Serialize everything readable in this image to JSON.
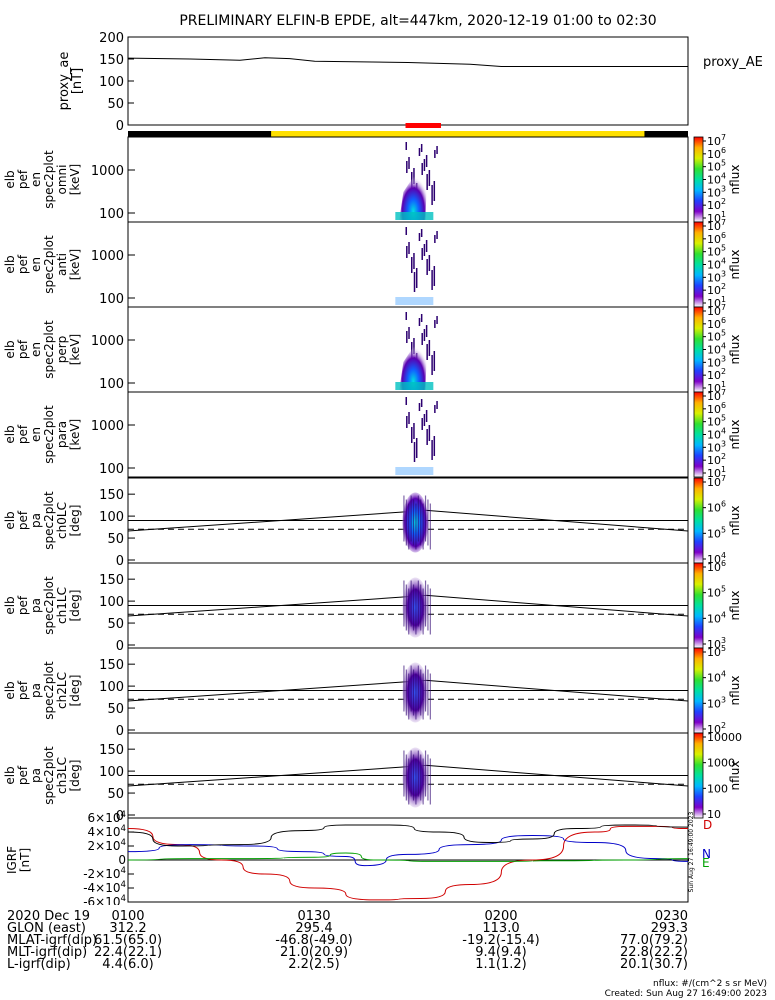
{
  "title": "PRELIMINARY ELFIN-B EPDE, alt=447km, 2020-12-19 01:00 to 02:30",
  "chart_data": [
    {
      "type": "line",
      "ylabel": [
        "proxy_ae",
        "[nT]"
      ],
      "yticks": [
        "200",
        "150",
        "100",
        "50",
        "0"
      ],
      "ylim": [
        0,
        200
      ],
      "series": [
        {
          "name": "proxy_AE",
          "x": [
            0,
            10,
            18,
            22,
            26,
            30,
            45,
            55,
            60,
            70,
            80,
            90
          ],
          "y": [
            152,
            150,
            147,
            153,
            151,
            145,
            142,
            138,
            133,
            133,
            133,
            133
          ]
        }
      ]
    },
    {
      "type": "heatmap",
      "ylabel": [
        "elb",
        "pef",
        "en",
        "spec2plot",
        "omni",
        "[keV]"
      ],
      "yticks": [
        "1000",
        "100"
      ],
      "colorbar": {
        "label": "nflux",
        "ticks": [
          "10^7",
          "10^6",
          "10^5",
          "10^4",
          "10^3",
          "10^2",
          "10^1"
        ]
      }
    },
    {
      "type": "heatmap",
      "ylabel": [
        "elb",
        "pef",
        "en",
        "spec2plot",
        "anti",
        "[keV]"
      ],
      "yticks": [
        "1000",
        "100"
      ],
      "colorbar": {
        "label": "nflux",
        "ticks": [
          "10^7",
          "10^6",
          "10^5",
          "10^4",
          "10^3",
          "10^2",
          "10^1"
        ]
      }
    },
    {
      "type": "heatmap",
      "ylabel": [
        "elb",
        "pef",
        "en",
        "spec2plot",
        "perp",
        "[keV]"
      ],
      "yticks": [
        "1000",
        "100"
      ],
      "colorbar": {
        "label": "nflux",
        "ticks": [
          "10^7",
          "10^6",
          "10^5",
          "10^4",
          "10^3",
          "10^2",
          "10^1"
        ]
      }
    },
    {
      "type": "heatmap",
      "ylabel": [
        "elb",
        "pef",
        "en",
        "spec2plot",
        "para",
        "[keV]"
      ],
      "yticks": [
        "1000",
        "100"
      ],
      "colorbar": {
        "label": "nflux",
        "ticks": [
          "10^7",
          "10^6",
          "10^5",
          "10^4",
          "10^3",
          "10^2",
          "10^1"
        ]
      }
    },
    {
      "type": "heatmap",
      "ylabel": [
        "elb",
        "pef",
        "pa",
        "spec2plot",
        "ch0LC",
        "[deg]"
      ],
      "yticks": [
        "150",
        "100",
        "50",
        "0"
      ],
      "colorbar": {
        "label": "nflux",
        "ticks": [
          "10^7",
          "10^6",
          "10^5",
          "10^4"
        ]
      }
    },
    {
      "type": "heatmap",
      "ylabel": [
        "elb",
        "pef",
        "pa",
        "spec2plot",
        "ch1LC",
        "[deg]"
      ],
      "yticks": [
        "150",
        "100",
        "50",
        "0"
      ],
      "colorbar": {
        "label": "nflux",
        "ticks": [
          "10^6",
          "10^5",
          "10^4",
          "10^3"
        ]
      }
    },
    {
      "type": "heatmap",
      "ylabel": [
        "elb",
        "pef",
        "pa",
        "spec2plot",
        "ch2LC",
        "[deg]"
      ],
      "yticks": [
        "150",
        "100",
        "50",
        "0"
      ],
      "colorbar": {
        "label": "nflux",
        "ticks": [
          "10^5",
          "10^4",
          "10^3",
          "10^2"
        ]
      }
    },
    {
      "type": "heatmap",
      "ylabel": [
        "elb",
        "pef",
        "pa",
        "spec2plot",
        "ch3LC",
        "[deg]"
      ],
      "yticks": [
        "150",
        "100",
        "50",
        "0"
      ],
      "colorbar": {
        "label": "nflux",
        "ticks": [
          "10000",
          "1000",
          "100",
          "10"
        ]
      }
    },
    {
      "type": "line",
      "ylabel": [
        "IGRF",
        "[nT]"
      ],
      "yticks": [
        "6×10^4",
        "4×10^4",
        "2×10^4",
        "0",
        "-2×10^4",
        "-4×10^4",
        "-6×10^4"
      ],
      "ylim": [
        -60000,
        60000
      ],
      "series": [
        {
          "name": "D",
          "color": "#d00000",
          "x": [
            0,
            8,
            15,
            22,
            30,
            40,
            47,
            55,
            65,
            75,
            80,
            85,
            90
          ],
          "y": [
            45000,
            22000,
            0,
            -20000,
            -40000,
            -57000,
            -55000,
            -35000,
            0,
            40000,
            48000,
            48000,
            45000
          ]
        },
        {
          "name": "N",
          "color": "#0000c8",
          "x": [
            0,
            10,
            20,
            28,
            35,
            38,
            45,
            55,
            65,
            75,
            85,
            90
          ],
          "y": [
            12000,
            22000,
            20000,
            12000,
            5000,
            -8000,
            8000,
            22000,
            35000,
            25000,
            2000,
            -2000
          ]
        },
        {
          "name": "E",
          "color": "#00a000",
          "x": [
            0,
            10,
            20,
            30,
            35,
            40,
            50,
            60,
            70,
            80,
            90
          ],
          "y": [
            0,
            2000,
            2000,
            4000,
            10000,
            0,
            -2000,
            -2000,
            -1000,
            0,
            2000
          ]
        },
        {
          "name": "",
          "color": "#000000",
          "x": [
            0,
            8,
            18,
            28,
            35,
            42,
            50,
            58,
            65,
            72,
            80,
            90
          ],
          "y": [
            40000,
            20000,
            22000,
            42000,
            50000,
            50000,
            40000,
            25000,
            30000,
            45000,
            50000,
            47000
          ]
        }
      ],
      "side_note": "Sun Aug 27 16:49:00 2023"
    }
  ],
  "colorbar_label": "nflux",
  "proxy_label": "proxy_AE",
  "igrf_labels": {
    "d": "D",
    "n": "N",
    "e": "E"
  },
  "bar_colors": {
    "eclipse": "#000000",
    "sunlit": "#ffe000",
    "science": "#ff0000"
  },
  "side_note": "Sun Aug 27 16:49:00 2023",
  "footer": {
    "rows": [
      {
        "label": "2020 Dec 19",
        "values": [
          "0100",
          "0130",
          "0200",
          "0230"
        ]
      },
      {
        "label": "GLON (east)",
        "values": [
          "312.2",
          "295.4",
          "113.0",
          "293.3"
        ]
      },
      {
        "label": "MLAT-igrf(dip)",
        "values": [
          "61.5(65.0)",
          "-46.8(-49.0)",
          "-19.2(-15.4)",
          "77.0(79.2)"
        ]
      },
      {
        "label": "MLT-igrf(dip)",
        "values": [
          "22.4(22.1)",
          "21.0(20.9)",
          "9.4(9.4)",
          "22.8(22.2)"
        ]
      },
      {
        "label": "L-igrf(dip)",
        "values": [
          "4.4(6.0)",
          "2.2(2.5)",
          "1.1(1.2)",
          "20.1(30.7)"
        ]
      }
    ],
    "units": "nflux: #/(cm^2 s sr MeV)",
    "created": "Created: Sun Aug 27 16:49:00 2023"
  }
}
